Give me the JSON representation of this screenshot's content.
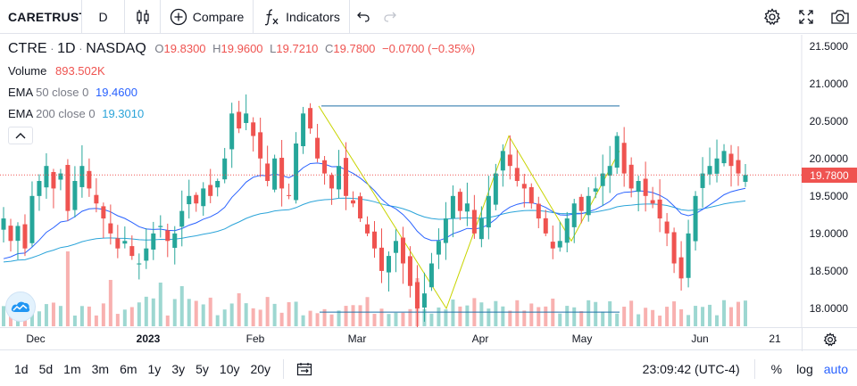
{
  "toolbar": {
    "symbol": "CARETRUST",
    "interval": "D",
    "compare_label": "Compare",
    "indicators_label": "Indicators",
    "icons": [
      "bar-style-icon",
      "plus-circle-icon",
      "fx-icon",
      "undo-icon",
      "redo-icon",
      "gear-icon",
      "fullscreen-icon",
      "camera-icon"
    ]
  },
  "legend": {
    "ticker": "CTRE",
    "interval": "1D",
    "exchange": "NASDAQ",
    "o_key": "O",
    "o_val": "19.8300",
    "h_key": "H",
    "h_val": "19.9600",
    "l_key": "L",
    "l_val": "19.7210",
    "c_key": "C",
    "c_val": "19.7800",
    "change": "−0.0700 (−0.35%)",
    "volume_label": "Volume",
    "volume_val": "893.502K",
    "ema50_label": "EMA",
    "ema50_params": "50 close 0",
    "ema50_val": "19.4600",
    "ema200_label": "EMA",
    "ema200_params": "200 close 0",
    "ema200_val": "19.3010"
  },
  "price_axis": {
    "labels": [
      "21.5000",
      "21.0000",
      "20.5000",
      "20.0000",
      "19.5000",
      "19.0000",
      "18.5000",
      "18.0000"
    ],
    "values": [
      21.5,
      21.0,
      20.5,
      20.0,
      19.5,
      19.0,
      18.5,
      18.0
    ],
    "current_price": "19.7800",
    "current_value": 19.78
  },
  "time_axis": {
    "labels": [
      {
        "text": "Dec",
        "bold": false
      },
      {
        "text": "2023",
        "bold": true
      },
      {
        "text": "Feb",
        "bold": false
      },
      {
        "text": "Mar",
        "bold": false
      },
      {
        "text": "Apr",
        "bold": false
      },
      {
        "text": "May",
        "bold": false
      },
      {
        "text": "Jun",
        "bold": false
      },
      {
        "text": "21",
        "bold": false
      }
    ]
  },
  "bottombar": {
    "ranges": [
      "1d",
      "5d",
      "1m",
      "3m",
      "6m",
      "1y",
      "3y",
      "5y",
      "10y",
      "20y"
    ],
    "time": "23:09:42 (UTC-4)",
    "percent": "%",
    "log": "log",
    "auto": "auto"
  },
  "colors": {
    "up": "#26a69a",
    "down": "#ef5350",
    "ema50": "#2962ff",
    "ema200": "#2ba4d9",
    "pattern": "#c8d400",
    "hline": "#1e6fa8"
  },
  "chart_data": {
    "type": "candlestick",
    "y_range": [
      17.75,
      21.65
    ],
    "closes": [
      19.2,
      18.9,
      19.1,
      18.8,
      19.5,
      19.7,
      19.9,
      19.6,
      19.8,
      19.3,
      19.7,
      19.9,
      19.6,
      19.4,
      19.2,
      19.0,
      18.8,
      18.9,
      18.7,
      18.6,
      18.8,
      19.0,
      19.1,
      18.9,
      19.0,
      19.3,
      19.5,
      19.4,
      19.6,
      19.5,
      19.7,
      20.0,
      20.6,
      20.4,
      20.6,
      20.3,
      20.0,
      19.7,
      20.0,
      19.6,
      19.5,
      20.2,
      20.6,
      20.4,
      20.0,
      19.8,
      19.6,
      19.9,
      19.5,
      19.4,
      19.2,
      19.0,
      18.8,
      18.5,
      18.7,
      18.9,
      18.6,
      18.3,
      18.0,
      18.2,
      18.6,
      18.9,
      19.2,
      19.5,
      19.3,
      19.4,
      19.0,
      19.2,
      19.5,
      19.8,
      20.1,
      19.9,
      19.7,
      19.6,
      19.4,
      19.2,
      19.0,
      18.8,
      18.9,
      19.2,
      19.4,
      19.3,
      19.5,
      19.6,
      19.8,
      19.9,
      20.3,
      19.8,
      19.6,
      19.7,
      19.5,
      19.4,
      19.2,
      19.0,
      18.6,
      18.4,
      19.0,
      19.5,
      19.8,
      19.9,
      20.0,
      20.1,
      19.9,
      19.8,
      19.78
    ]
  }
}
